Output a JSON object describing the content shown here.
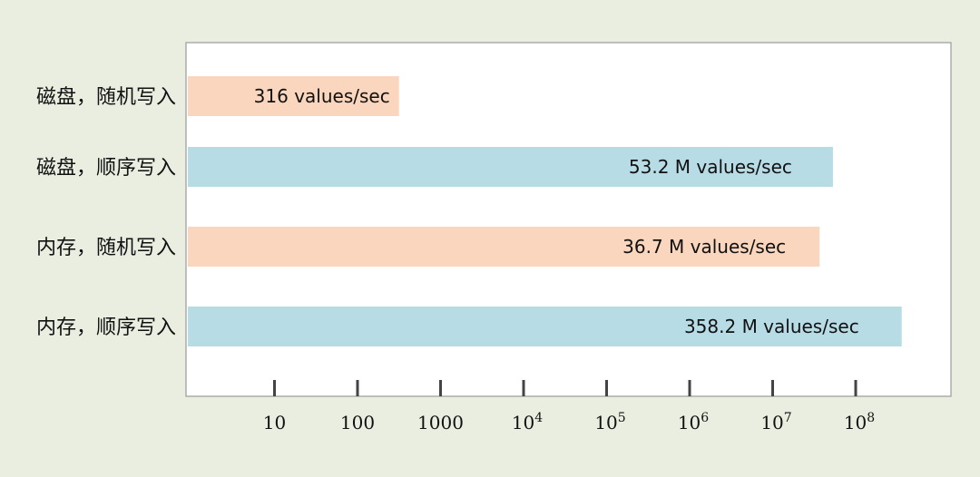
{
  "chart_data": {
    "type": "bar",
    "orientation": "horizontal",
    "x_scale": "log",
    "xlim": [
      1,
      1000000000
    ],
    "grid": false,
    "legend": "none",
    "categories": [
      "磁盘，随机写入",
      "磁盘，顺序写入",
      "内存，随机写入",
      "内存，顺序写入"
    ],
    "values": [
      316,
      53200000,
      36700000,
      358200000
    ],
    "data_labels": [
      "316 values/sec",
      "53.2 M values/sec",
      "36.7 M values/sec",
      "358.2 M values/sec"
    ],
    "bar_colors": [
      "#f9d6bd",
      "#b7dce6",
      "#f9d6bd",
      "#b7dce6"
    ],
    "ticks": [
      {
        "value": 10,
        "base": "10",
        "exp": ""
      },
      {
        "value": 100,
        "base": "100",
        "exp": ""
      },
      {
        "value": 1000,
        "base": "1000",
        "exp": ""
      },
      {
        "value": 10000,
        "base": "10",
        "exp": "4"
      },
      {
        "value": 100000,
        "base": "10",
        "exp": "5"
      },
      {
        "value": 1000000,
        "base": "10",
        "exp": "6"
      },
      {
        "value": 10000000,
        "base": "10",
        "exp": "7"
      },
      {
        "value": 100000000,
        "base": "10",
        "exp": "8"
      }
    ]
  },
  "colors": {
    "background": "#e9eee1",
    "plot_area": "#ffffff",
    "plot_border": "#9a9a9a",
    "tick": "#444444"
  }
}
